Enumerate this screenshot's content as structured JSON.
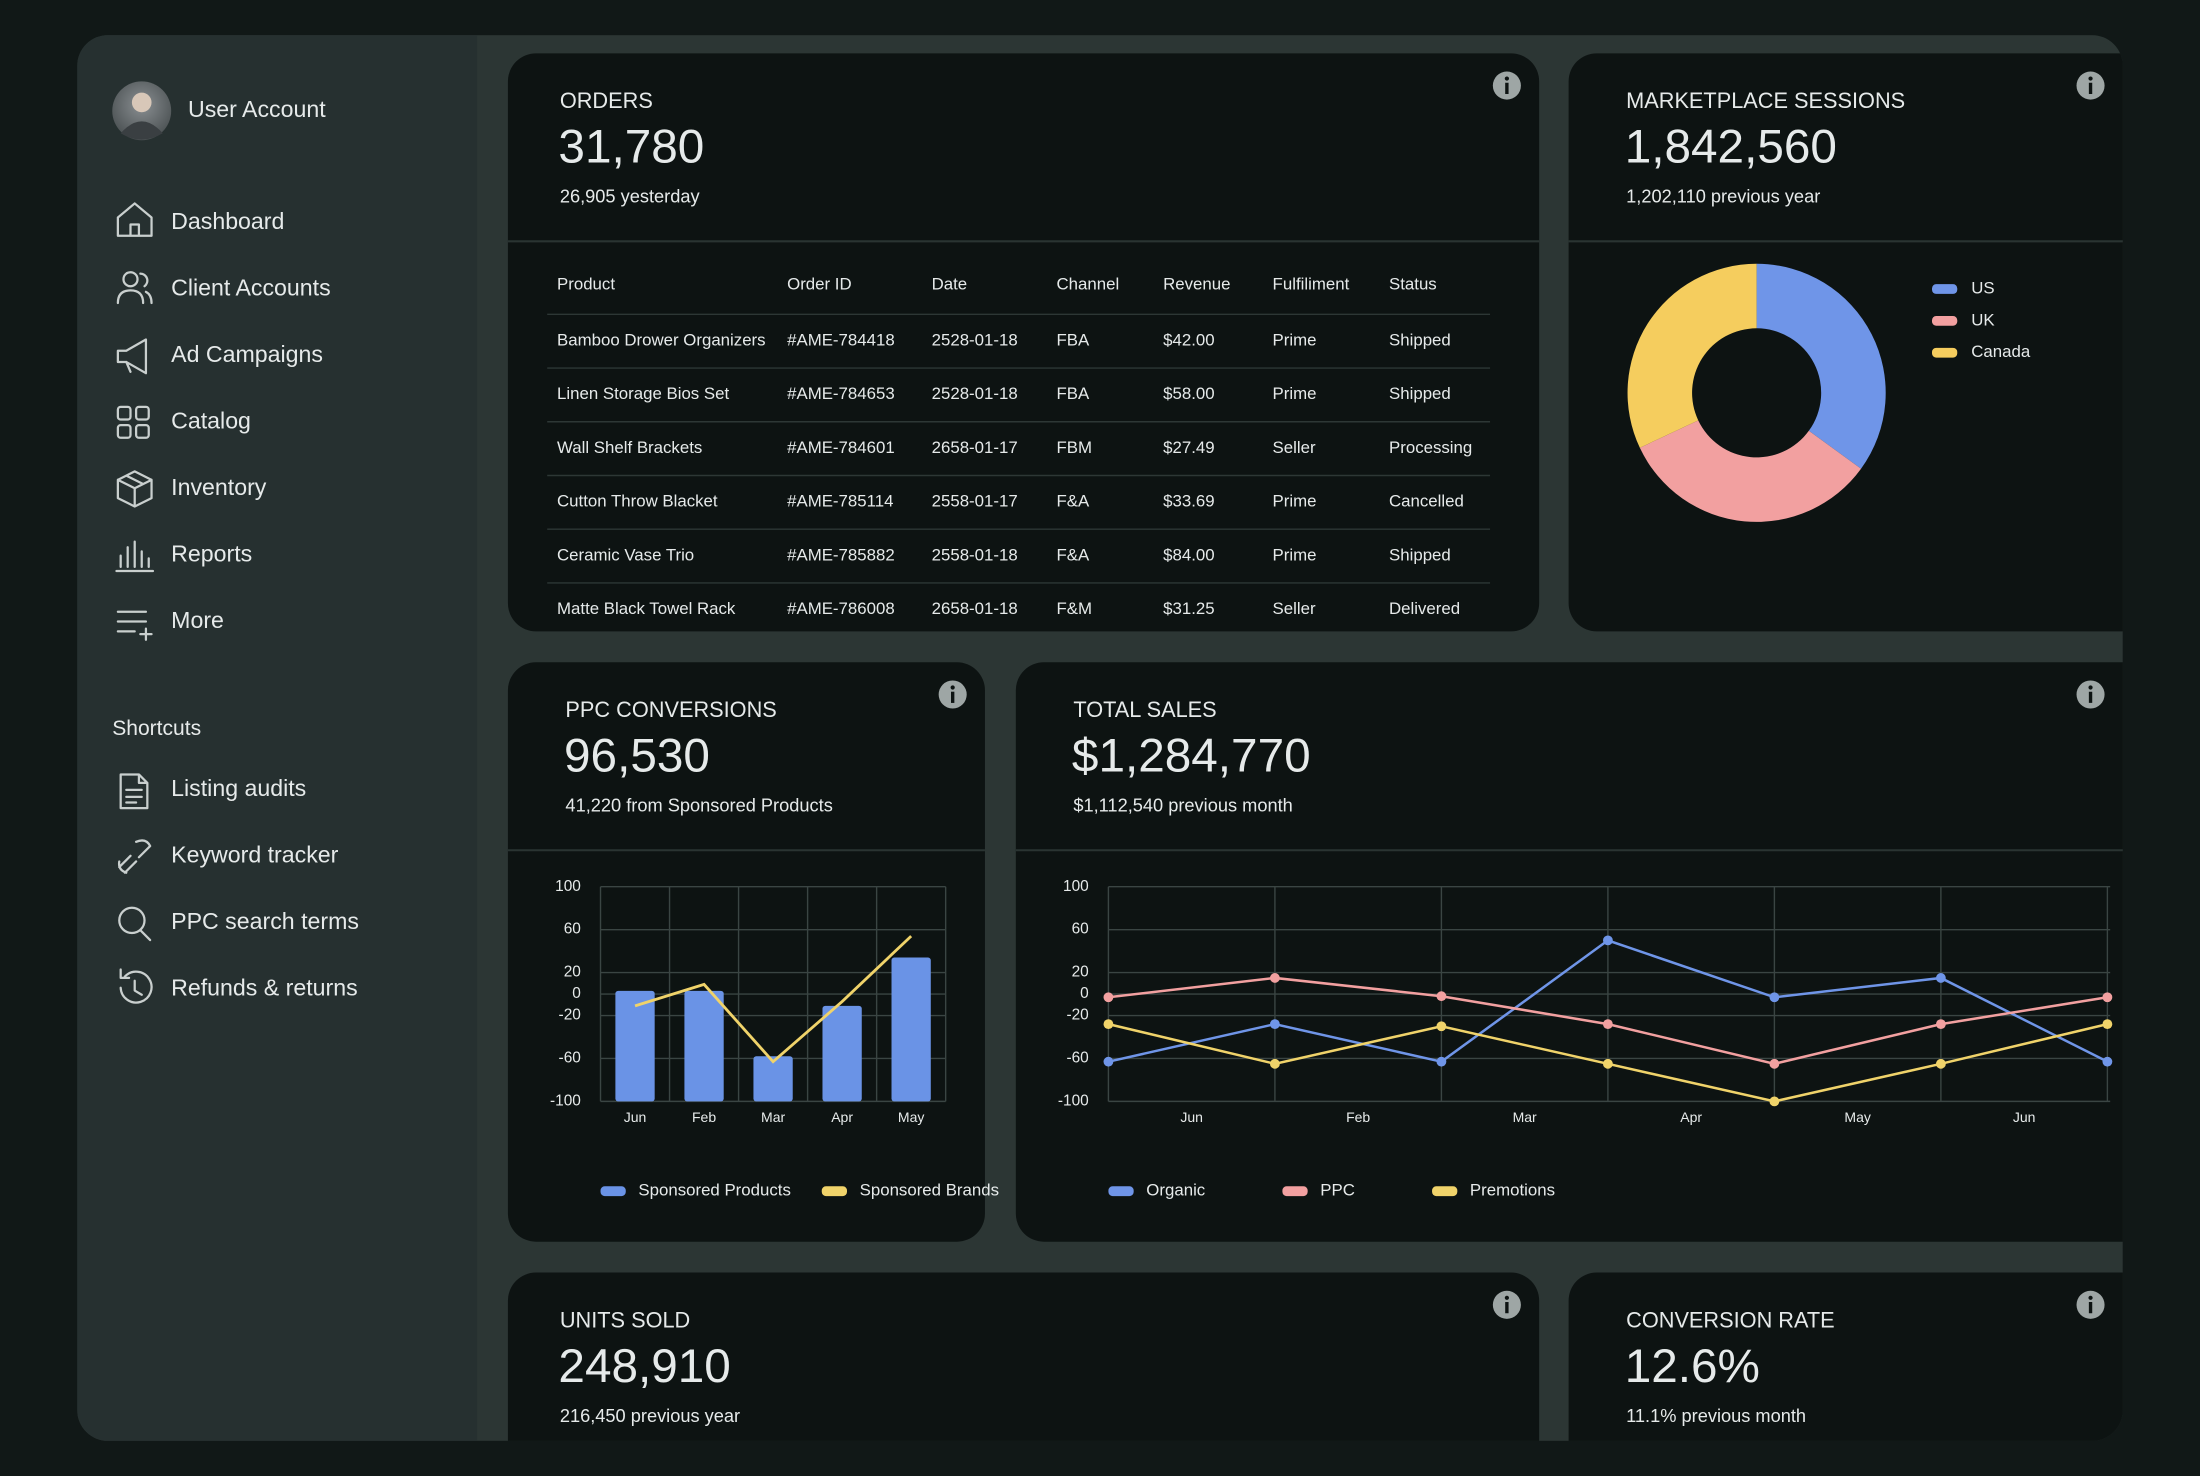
{
  "sidebar": {
    "user": "User Account",
    "nav": [
      "Dashboard",
      "Client Accounts",
      "Ad Campaigns",
      "Catalog",
      "Inventory",
      "Reports",
      "More"
    ],
    "shortcuts_title": "Shortcuts",
    "shortcuts": [
      "Listing audits",
      "Keyword tracker",
      "PPC search terms",
      "Refunds & returns"
    ]
  },
  "cards": {
    "orders": {
      "title": "ORDERS",
      "value": "31,780",
      "sub": "26,905 yesterday",
      "table": {
        "columns": [
          "Product",
          "Order ID",
          "Date",
          "Channel",
          "Revenue",
          "Fulfiliment",
          "Status"
        ],
        "rows": [
          [
            "Bamboo Drower Organizers",
            "#AME-784418",
            "2528-01-18",
            "FBA",
            "$42.00",
            "Prime",
            "Shipped"
          ],
          [
            "Linen Storage Bios Set",
            "#AME-784653",
            "2528-01-18",
            "FBA",
            "$58.00",
            "Prime",
            "Shipped"
          ],
          [
            "Wall Shelf Brackets",
            "#AME-784601",
            "2658-01-17",
            "FBM",
            "$27.49",
            "Seller",
            "Processing"
          ],
          [
            "Cutton Throw Blacket",
            "#AME-785114",
            "2558-01-17",
            "F&A",
            "$33.69",
            "Prime",
            "Cancelled"
          ],
          [
            "Ceramic Vase Trio",
            "#AME-785882",
            "2558-01-18",
            "F&A",
            "$84.00",
            "Prime",
            "Shipped"
          ],
          [
            "Matte Black Towel Rack",
            "#AME-786008",
            "2658-01-18",
            "F&M",
            "$31.25",
            "Seller",
            "Delivered"
          ]
        ]
      }
    },
    "sessions": {
      "title": "MARKETPLACE SESSIONS",
      "value": "1,842,560",
      "sub": "1,202,110 previous year"
    },
    "ppc": {
      "title": "PPC CONVERSIONS",
      "value": "96,530",
      "sub": "41,220 from Sponsored Products"
    },
    "sales": {
      "title": "TOTAL SALES",
      "value": "$1,284,770",
      "sub": "$1,112,540 previous month"
    },
    "units": {
      "title": "UNITS SOLD",
      "value": "248,910",
      "sub": "216,450 previous year"
    },
    "conversion": {
      "title": "CONVERSION RATE",
      "value": "12.6%",
      "sub": "11.1% previous month"
    }
  },
  "chart_data": [
    {
      "type": "pie",
      "donut": true,
      "categories": [
        "US",
        "UK",
        "Canada"
      ],
      "values": [
        35,
        33,
        32
      ],
      "colors": [
        "#6f95e8",
        "#f2a0a0",
        "#f5cd5e"
      ],
      "legend": "right"
    },
    {
      "type": "bar",
      "categories": [
        "Jun",
        "Feb",
        "Mar",
        "Apr",
        "May"
      ],
      "series": [
        {
          "name": "Sponsored Products",
          "type": "bar",
          "color": "#6a93e6",
          "values": [
            3,
            3,
            -58,
            -11,
            34
          ]
        },
        {
          "name": "Sponsored Brands",
          "type": "line",
          "color": "#f0d36a",
          "values": [
            -11,
            9,
            -63,
            -7,
            54
          ]
        }
      ],
      "ylim": [
        -100,
        100
      ],
      "yticks": [
        100,
        60,
        20,
        0,
        -20,
        -60,
        -100
      ],
      "grid": true,
      "legend": "bottom"
    },
    {
      "type": "line",
      "categories": [
        "Jun",
        "Feb",
        "Mar",
        "Apr",
        "May",
        "Jun",
        null
      ],
      "series": [
        {
          "name": "Organic",
          "color": "#6f95e8",
          "values": [
            -63,
            -28,
            -63,
            50,
            -3,
            15,
            -63
          ]
        },
        {
          "name": "PPC",
          "color": "#f2a0a0",
          "values": [
            -3,
            15,
            -2,
            -28,
            -65,
            -28,
            -3
          ]
        },
        {
          "name": "Premotions",
          "color": "#f0d36a",
          "values": [
            -28,
            -65,
            -30,
            -65,
            -100,
            -65,
            -28
          ]
        }
      ],
      "ylim": [
        -100,
        100
      ],
      "yticks": [
        100,
        60,
        20,
        0,
        -20,
        -60,
        -100
      ],
      "grid": true,
      "legend": "bottom"
    }
  ]
}
